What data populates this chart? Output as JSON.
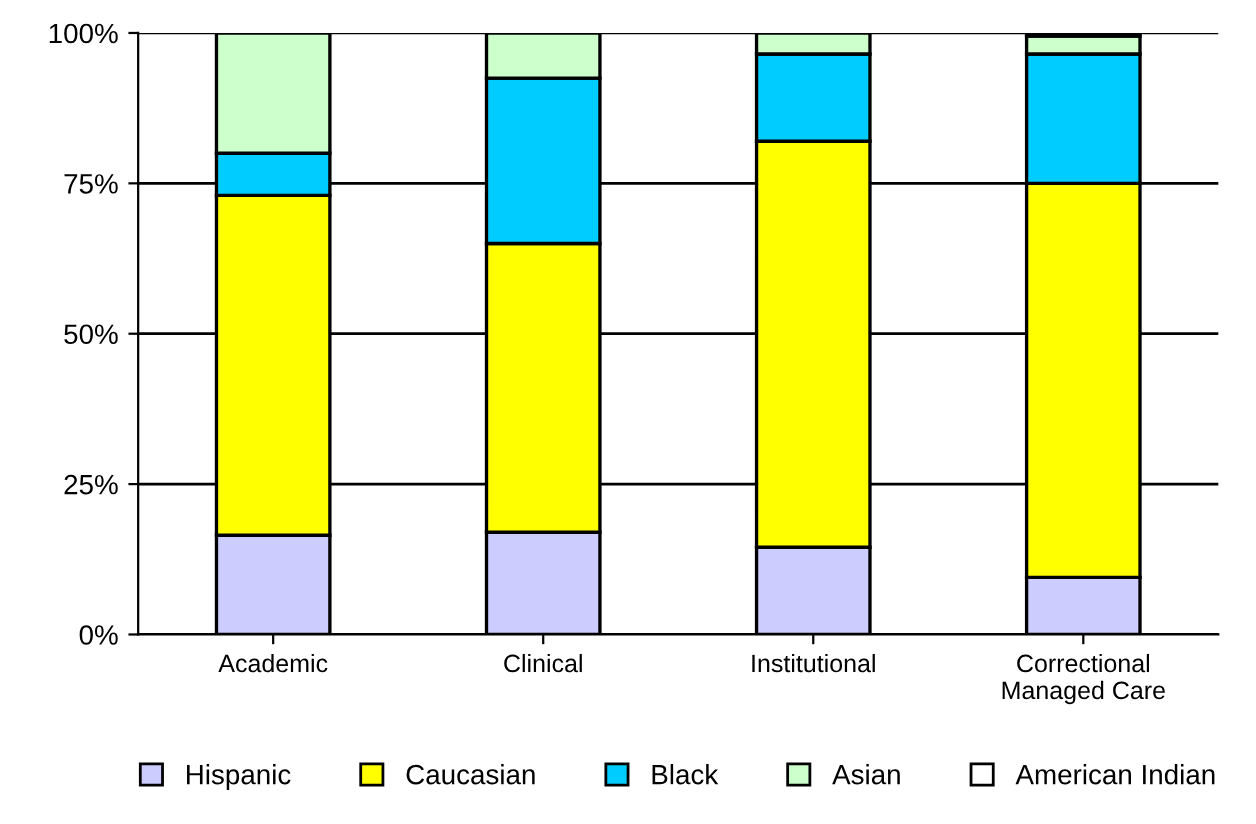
{
  "chart_data": {
    "type": "bar",
    "stacked": true,
    "categories": [
      "Academic",
      "Clinical",
      "Institutional",
      "Correctional\nManaged Care"
    ],
    "series": [
      {
        "name": "Hispanic",
        "color": "#ccccff",
        "values": [
          16.5,
          17,
          14.5,
          9.5
        ]
      },
      {
        "name": "Caucasian",
        "color": "#ffff00",
        "values": [
          56.5,
          48,
          67.5,
          65.5
        ]
      },
      {
        "name": "Black",
        "color": "#00ccff",
        "values": [
          7,
          27.5,
          14.5,
          21.5
        ]
      },
      {
        "name": "Asian",
        "color": "#ccffcc",
        "values": [
          20,
          7.5,
          3.5,
          3
        ]
      },
      {
        "name": "American Indian",
        "color": "#ffffff",
        "values": [
          null,
          null,
          null,
          0.5
        ]
      }
    ],
    "ylim": [
      0,
      100
    ],
    "yticks": [
      {
        "value": 0,
        "label": "0%"
      },
      {
        "value": 25,
        "label": "25%"
      },
      {
        "value": 50,
        "label": "50%"
      },
      {
        "value": 75,
        "label": "75%"
      },
      {
        "value": 100,
        "label": "100%"
      }
    ],
    "grid": "y",
    "legend": "bottom"
  }
}
